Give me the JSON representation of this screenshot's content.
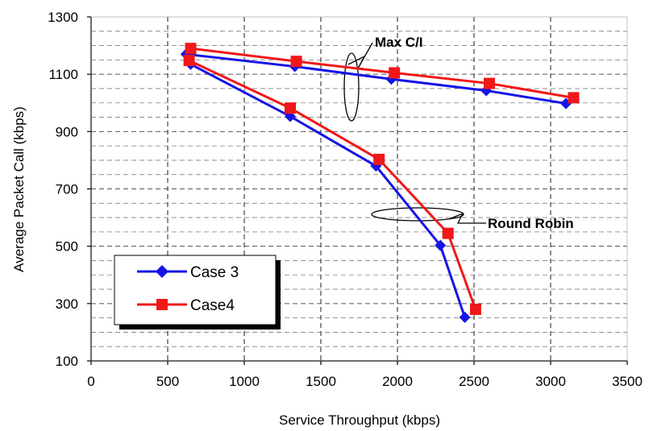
{
  "colors": {
    "case3": "#1414e6",
    "case4": "#f01818",
    "grid": "#7f7f7f",
    "axis": "#000000"
  },
  "chart_data": {
    "type": "line",
    "xlabel": "Service Throughput (kbps)",
    "ylabel": "Average Packet Call (kbps)",
    "xlim": [
      0,
      3500
    ],
    "ylim": [
      100,
      1300
    ],
    "x_ticks": [
      "0",
      "500",
      "1000",
      "1500",
      "2000",
      "2500",
      "3000",
      "3500"
    ],
    "y_ticks": [
      "100",
      "300",
      "500",
      "700",
      "900",
      "1100",
      "1300"
    ],
    "grid": "dashed, major and minor horizontal, major vertical",
    "legend_position": "bottom-left",
    "series": [
      {
        "name": "Case 3",
        "marker": "diamond",
        "color_key": "case3",
        "groups": [
          {
            "label": "Max C/I",
            "x": [
              620,
              1330,
              1960,
              2580,
              3100
            ],
            "y": [
              1170,
              1127,
              1083,
              1043,
              998
            ]
          },
          {
            "label": "Round Robin",
            "x": [
              650,
              1300,
              1860,
              2280,
              2440
            ],
            "y": [
              1135,
              953,
              780,
              503,
              252
            ]
          }
        ]
      },
      {
        "name": "Case4",
        "marker": "square",
        "color_key": "case4",
        "groups": [
          {
            "label": "Max C/I",
            "x": [
              650,
              1340,
              1980,
              2600,
              3150
            ],
            "y": [
              1190,
              1145,
              1105,
              1068,
              1018
            ]
          },
          {
            "label": "Round Robin",
            "x": [
              640,
              1300,
              1880,
              2330,
              2510
            ],
            "y": [
              1148,
              982,
              803,
              545,
              280
            ]
          }
        ]
      }
    ],
    "annotations": [
      "Max C/I",
      "Round Robin"
    ]
  }
}
